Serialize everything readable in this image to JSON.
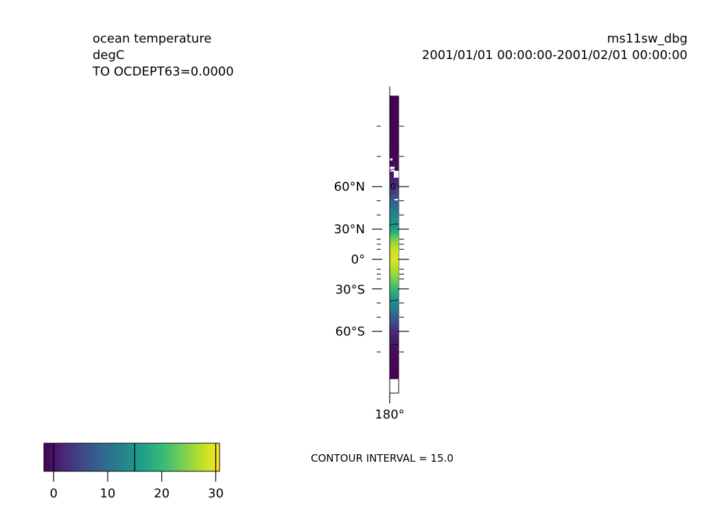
{
  "chart_data": {
    "type": "heatmap",
    "title_left": [
      "ocean temperature",
      "degC",
      "TO OCDEPT63=0.0000"
    ],
    "title_right": [
      "ms11sw_dbg",
      "2001/01/01 00:00:00-2001/02/01 00:00:00"
    ],
    "variable": "ocean temperature",
    "units": "degC",
    "level": "TO OCDEPT63=0.0000",
    "run": "ms11sw_dbg",
    "period": "2001/01/01 00:00:00-2001/02/01 00:00:00",
    "x_ticks": [
      "180°"
    ],
    "y_major_ticks": [
      {
        "lat": 60,
        "label": "60°N"
      },
      {
        "lat": 30,
        "label": "30°N"
      },
      {
        "lat": 0,
        "label": "0°"
      },
      {
        "lat": -30,
        "label": "30°S"
      },
      {
        "lat": -60,
        "label": "60°S"
      }
    ],
    "y_minor_ticks_lat": [
      80,
      70,
      50,
      40,
      20,
      15,
      10,
      -10,
      -15,
      -20,
      -40,
      -50,
      -70
    ],
    "lat_range": [
      -90,
      90
    ],
    "data_lat_range": [
      -83,
      90
    ],
    "temperature_profile": [
      {
        "lat": 90,
        "value": -1.8
      },
      {
        "lat": 70,
        "value": -1.5
      },
      {
        "lat": 60,
        "value": 2
      },
      {
        "lat": 50,
        "value": 8
      },
      {
        "lat": 40,
        "value": 13
      },
      {
        "lat": 30,
        "value": 16
      },
      {
        "lat": 20,
        "value": 24
      },
      {
        "lat": 10,
        "value": 28
      },
      {
        "lat": 0,
        "value": 29
      },
      {
        "lat": -10,
        "value": 27
      },
      {
        "lat": -20,
        "value": 24
      },
      {
        "lat": -30,
        "value": 20
      },
      {
        "lat": -40,
        "value": 14
      },
      {
        "lat": -50,
        "value": 8
      },
      {
        "lat": -60,
        "value": 2
      },
      {
        "lat": -70,
        "value": -1
      },
      {
        "lat": -83,
        "value": -1.8
      }
    ],
    "contour_levels": [
      0,
      15,
      30
    ],
    "contour_label": "0",
    "colorbar": {
      "colormap": "viridis",
      "range": [
        -1.8,
        30.7
      ],
      "ticks": [
        0,
        10,
        20,
        30
      ],
      "tick_labels": [
        "0",
        "10",
        "20",
        "30"
      ],
      "contour_marks": [
        0,
        15,
        30
      ]
    },
    "contour_interval_text": "CONTOUR INTERVAL = 15.0"
  }
}
